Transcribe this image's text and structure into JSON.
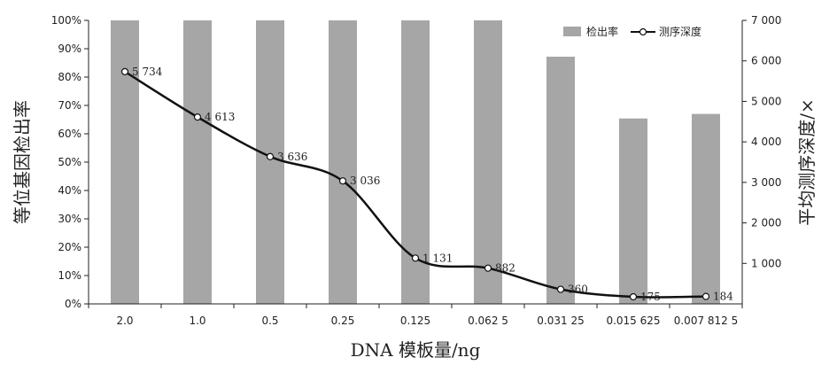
{
  "chart_data": {
    "type": "bar+line",
    "xlabel": "DNA 模板量/ng",
    "categories": [
      "2.0",
      "1.0",
      "0.5",
      "0.25",
      "0.125",
      "0.062 5",
      "0.031 25",
      "0.015 625",
      "0.007 812 5"
    ],
    "y_left": {
      "label": "等位基因检出率",
      "range": [
        0,
        100
      ],
      "ticks": [
        "0%",
        "10%",
        "20%",
        "30%",
        "40%",
        "50%",
        "60%",
        "70%",
        "80%",
        "90%",
        "100%"
      ]
    },
    "y_right": {
      "label": "平均测序深度/×",
      "range": [
        0,
        7000
      ],
      "ticks": [
        "1 000",
        "2 000",
        "3 000",
        "4 000",
        "5 000",
        "6 000",
        "7 000"
      ]
    },
    "series": [
      {
        "name": "检出率",
        "type": "bar",
        "axis": "left",
        "color": "#a6a6a6",
        "values": [
          100,
          100,
          100,
          100,
          100,
          100,
          87.2,
          65.4,
          67.0
        ]
      },
      {
        "name": "测序深度",
        "type": "line",
        "axis": "right",
        "color": "#111111",
        "values": [
          5734,
          4613,
          3636,
          3036,
          1131,
          882,
          360,
          175,
          184
        ],
        "labels": [
          "5 734",
          "4 613",
          "3 636",
          "3 036",
          "1 131",
          "882",
          "360",
          "175",
          "184"
        ]
      }
    ],
    "legend": "top-right",
    "grid": false
  }
}
